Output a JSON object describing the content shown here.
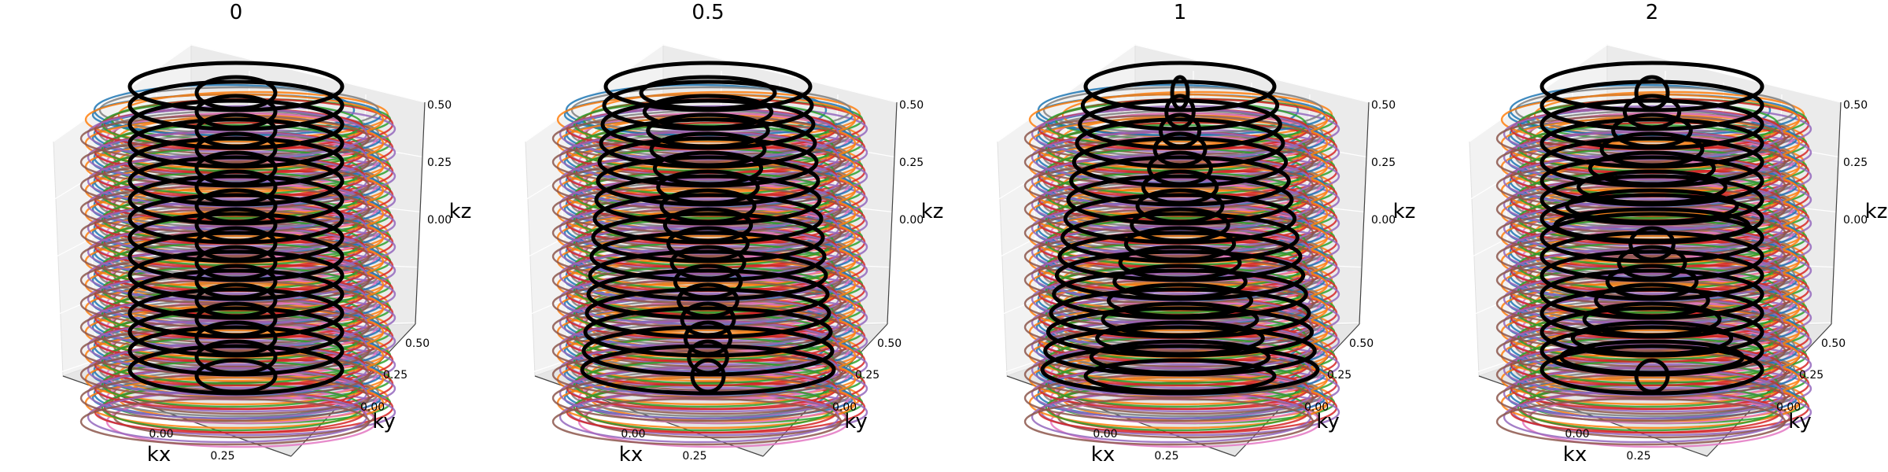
{
  "chart_data": [
    {
      "type": "line3d",
      "title": "0",
      "xlabel": "kx",
      "ylabel": "ky",
      "zlabel": "kz",
      "xticks": [
        "0.00",
        "0.25"
      ],
      "yticks": [
        "0.00",
        "0.25",
        "0.50"
      ],
      "zticks": [
        "0.00",
        "0.25",
        "0.50"
      ],
      "xlim": [
        -0.5,
        0.5
      ],
      "ylim": [
        -0.5,
        0.5
      ],
      "zlim": [
        -0.5,
        0.5
      ],
      "grid": true,
      "highlight_shape": "stacked cylinders",
      "background_colors": [
        "#1f77b4",
        "#ff7f0e",
        "#2ca02c",
        "#d62728",
        "#9467bd",
        "#8c564b",
        "#e377c2",
        "#7f7f7f"
      ],
      "highlight_color": "#000000"
    },
    {
      "type": "line3d",
      "title": "0.5",
      "xlabel": "kx",
      "ylabel": "ky",
      "zlabel": "kz",
      "xticks": [
        "0.00",
        "0.25"
      ],
      "yticks": [
        "0.00",
        "0.25",
        "0.50"
      ],
      "zticks": [
        "0.00",
        "0.25",
        "0.50"
      ],
      "xlim": [
        -0.5,
        0.5
      ],
      "ylim": [
        -0.5,
        0.5
      ],
      "zlim": [
        -0.5,
        0.5
      ],
      "grid": true,
      "highlight_shape": "inverted cone",
      "background_colors": [
        "#1f77b4",
        "#ff7f0e",
        "#2ca02c",
        "#d62728",
        "#9467bd",
        "#8c564b",
        "#e377c2",
        "#7f7f7f"
      ],
      "highlight_color": "#000000"
    },
    {
      "type": "line3d",
      "title": "1",
      "xlabel": "kx",
      "ylabel": "ky",
      "zlabel": "kz",
      "xticks": [
        "0.00",
        "0.25"
      ],
      "yticks": [
        "0.00",
        "0.25",
        "0.50"
      ],
      "zticks": [
        "0.00",
        "0.25",
        "0.50"
      ],
      "xlim": [
        -0.5,
        0.5
      ],
      "ylim": [
        -0.5,
        0.5
      ],
      "zlim": [
        -0.5,
        0.5
      ],
      "grid": true,
      "highlight_shape": "cone",
      "background_colors": [
        "#1f77b4",
        "#ff7f0e",
        "#2ca02c",
        "#d62728",
        "#9467bd",
        "#8c564b",
        "#e377c2",
        "#7f7f7f"
      ],
      "highlight_color": "#000000"
    },
    {
      "type": "line3d",
      "title": "2",
      "xlabel": "kx",
      "ylabel": "ky",
      "zlabel": "kz",
      "xticks": [
        "0.00",
        "0.25"
      ],
      "yticks": [
        "0.00",
        "0.25",
        "0.50"
      ],
      "zticks": [
        "0.00",
        "0.25",
        "0.50"
      ],
      "xlim": [
        -0.5,
        0.5
      ],
      "ylim": [
        -0.5,
        0.5
      ],
      "zlim": [
        -0.5,
        0.5
      ],
      "grid": true,
      "highlight_shape": "stacked cones",
      "background_colors": [
        "#1f77b4",
        "#ff7f0e",
        "#2ca02c",
        "#d62728",
        "#9467bd",
        "#8c564b",
        "#e377c2",
        "#7f7f7f"
      ],
      "highlight_color": "#000000"
    }
  ]
}
